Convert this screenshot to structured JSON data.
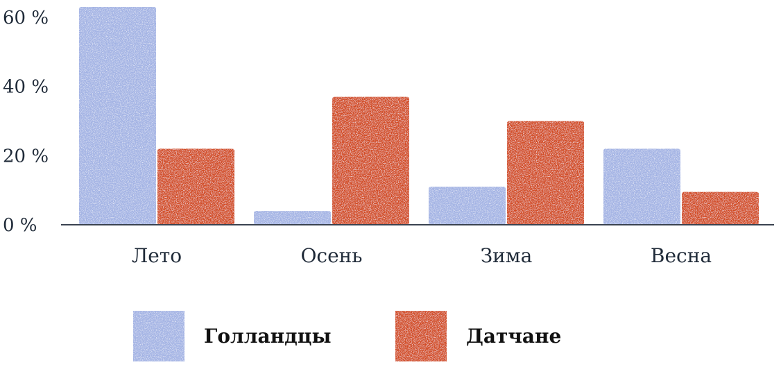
{
  "chart_data": {
    "type": "bar",
    "categories": [
      "Лето",
      "Осень",
      "Зима",
      "Весна"
    ],
    "series": [
      {
        "name": "Голландцы",
        "values": [
          63,
          4,
          11,
          22
        ],
        "color": "#a3b3e4"
      },
      {
        "name": "Датчане",
        "values": [
          22,
          37,
          30,
          9.5
        ],
        "color": "#d24c24"
      }
    ],
    "y_ticks": [
      0,
      20,
      40,
      60
    ],
    "y_tick_labels": [
      "0 %",
      "20 %",
      "40 %",
      "60 %"
    ],
    "ylim": [
      0,
      64
    ],
    "grid": false,
    "legend_position": "bottom"
  }
}
